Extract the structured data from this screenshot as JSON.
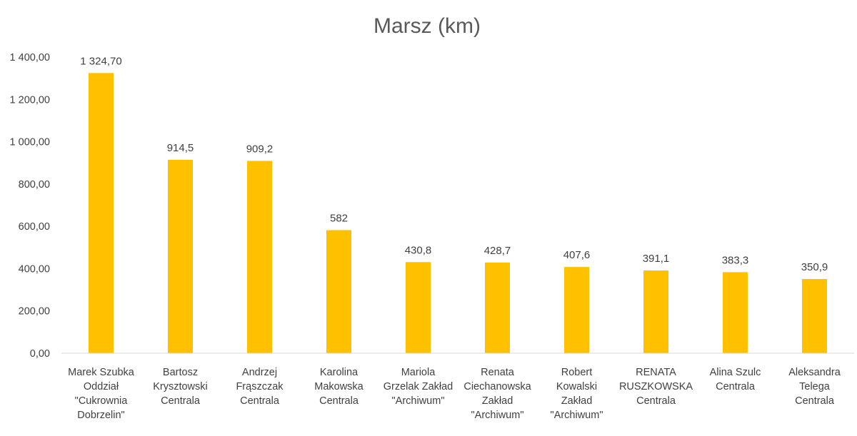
{
  "chart_data": {
    "type": "bar",
    "title": "Marsz (km)",
    "xlabel": "",
    "ylabel": "",
    "ylim": [
      0,
      1400
    ],
    "y_ticks": [
      0,
      200,
      400,
      600,
      800,
      1000,
      1200,
      1400
    ],
    "y_tick_labels": [
      "0,00",
      "200,00",
      "400,00",
      "600,00",
      "800,00",
      "1 000,00",
      "1 200,00",
      "1 400,00"
    ],
    "grid": false,
    "legend": "none",
    "bar_color": "#FFC000",
    "categories": [
      "Marek Szubka Oddział \"Cukrownia Dobrzelin\"",
      "Bartosz Krysztowski Centrala",
      "Andrzej Frąszczak Centrala",
      "Karolina Makowska Centrala",
      "Mariola Grzelak Zakład \"Archiwum\"",
      "Renata Ciechanowska Zakład \"Archiwum\"",
      "Robert Kowalski Zakład \"Archiwum\"",
      "RENATA RUSZKOWSKA Centrala",
      "Alina Szulc Centrala",
      "Aleksandra Telega Centrala"
    ],
    "category_lines": [
      [
        "Marek Szubka",
        "Oddział",
        "\"Cukrownia",
        "Dobrzelin\""
      ],
      [
        "Bartosz",
        "Krysztowski",
        "Centrala"
      ],
      [
        "Andrzej",
        "Frąszczak",
        "Centrala"
      ],
      [
        "Karolina",
        "Makowska",
        "Centrala"
      ],
      [
        "Mariola",
        "Grzelak Zakład",
        "\"Archiwum\""
      ],
      [
        "Renata",
        "Ciechanowska",
        "Zakład",
        "\"Archiwum\""
      ],
      [
        "Robert",
        "Kowalski",
        "Zakład",
        "\"Archiwum\""
      ],
      [
        "RENATA",
        "RUSZKOWSKA",
        "Centrala"
      ],
      [
        "Alina Szulc",
        "Centrala"
      ],
      [
        "Aleksandra",
        "Telega",
        "Centrala"
      ]
    ],
    "values": [
      1324.7,
      914.5,
      909.2,
      582,
      430.8,
      428.7,
      407.6,
      391.1,
      383.3,
      350.9
    ],
    "value_labels": [
      "1 324,70",
      "914,5",
      "909,2",
      "582",
      "430,8",
      "428,7",
      "407,6",
      "391,1",
      "383,3",
      "350,9"
    ]
  }
}
